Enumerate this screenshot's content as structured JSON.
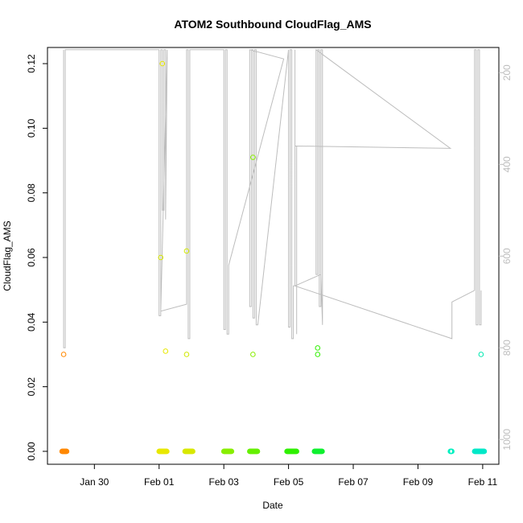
{
  "chart_data": {
    "type": "scatter",
    "title": "ATOM2 Southbound CloudFlag_AMS",
    "xlabel": "Date",
    "ylabel": "CloudFlag_AMS",
    "x_ticks": [
      "Jan 30",
      "Feb 01",
      "Feb 03",
      "Feb 05",
      "Feb 07",
      "Feb 09",
      "Feb 11"
    ],
    "x_tick_days": [
      30,
      32,
      34,
      36,
      38,
      40,
      42
    ],
    "xlim_days": [
      28.55,
      42.5
    ],
    "ylim": [
      -0.004,
      0.125
    ],
    "y_ticks": [
      "0.00",
      "0.02",
      "0.04",
      "0.06",
      "0.08",
      "0.10",
      "0.12"
    ],
    "y_tick_values": [
      0,
      0.02,
      0.04,
      0.06,
      0.08,
      0.1,
      0.12
    ],
    "right_axis": {
      "ylim": [
        1054,
        145
      ],
      "ticks": [
        "200",
        "400",
        "600",
        "800",
        "1000"
      ],
      "tick_values": [
        200,
        400,
        600,
        800,
        1000
      ],
      "color": "#bdbdbd"
    },
    "grid": false,
    "points": [
      {
        "day": 29.05,
        "value": 0.03,
        "color": "#ff8800"
      },
      {
        "day": 32.1,
        "value": 0.12,
        "color": "#e8e800"
      },
      {
        "day": 32.05,
        "value": 0.06,
        "color": "#d8e800"
      },
      {
        "day": 32.2,
        "value": 0.031,
        "color": "#e8e800"
      },
      {
        "day": 32.85,
        "value": 0.062,
        "color": "#d0e800"
      },
      {
        "day": 32.85,
        "value": 0.03,
        "color": "#d0e800"
      },
      {
        "day": 34.9,
        "value": 0.091,
        "color": "#88ee00"
      },
      {
        "day": 34.9,
        "value": 0.03,
        "color": "#88ee00"
      },
      {
        "day": 36.9,
        "value": 0.032,
        "color": "#30f000"
      },
      {
        "day": 36.9,
        "value": 0.03,
        "color": "#30f000"
      },
      {
        "day": 41.95,
        "value": 0.03,
        "color": "#00e8b0"
      }
    ],
    "zero_clusters": [
      {
        "start": 29.0,
        "end": 29.15,
        "color": "#ff8800"
      },
      {
        "start": 32.0,
        "end": 32.25,
        "color": "#e8e800"
      },
      {
        "start": 32.8,
        "end": 33.05,
        "color": "#d8e800"
      },
      {
        "start": 34.0,
        "end": 34.25,
        "color": "#88ee00"
      },
      {
        "start": 34.8,
        "end": 35.05,
        "color": "#66f000"
      },
      {
        "start": 35.95,
        "end": 36.25,
        "color": "#30f000"
      },
      {
        "start": 36.8,
        "end": 37.05,
        "color": "#10f030"
      },
      {
        "start": 41.0,
        "end": 41.05,
        "color": "#00f0c0"
      },
      {
        "start": 41.75,
        "end": 42.05,
        "color": "#00e8c8"
      }
    ],
    "altitude_trace": {
      "color": "#bdbdbd",
      "points": [
        [
          29.05,
          150
        ],
        [
          29.05,
          800
        ],
        [
          29.1,
          800
        ],
        [
          29.1,
          150
        ],
        [
          32.0,
          150
        ],
        [
          32.0,
          730
        ],
        [
          32.05,
          730
        ],
        [
          32.05,
          150
        ],
        [
          32.1,
          150
        ],
        [
          32.1,
          500
        ],
        [
          32.15,
          500
        ],
        [
          32.15,
          150
        ],
        [
          32.2,
          150
        ],
        [
          32.2,
          520
        ],
        [
          32.25,
          150
        ],
        [
          32.05,
          720
        ],
        [
          32.85,
          705
        ],
        [
          32.85,
          150
        ],
        [
          32.9,
          150
        ],
        [
          32.9,
          780
        ],
        [
          32.95,
          780
        ],
        [
          32.95,
          150
        ],
        [
          34.0,
          150
        ],
        [
          34.0,
          760
        ],
        [
          34.05,
          760
        ],
        [
          34.05,
          150
        ],
        [
          34.1,
          150
        ],
        [
          34.1,
          770
        ],
        [
          34.15,
          770
        ],
        [
          34.15,
          620
        ],
        [
          35.85,
          170
        ],
        [
          34.8,
          150
        ],
        [
          34.8,
          710
        ],
        [
          34.85,
          710
        ],
        [
          34.85,
          150
        ],
        [
          34.9,
          150
        ],
        [
          34.9,
          735
        ],
        [
          34.95,
          735
        ],
        [
          34.95,
          150
        ],
        [
          35.0,
          150
        ],
        [
          35.0,
          750
        ],
        [
          35.05,
          750
        ],
        [
          36.0,
          150
        ],
        [
          36.0,
          755
        ],
        [
          36.05,
          755
        ],
        [
          36.05,
          150
        ],
        [
          36.1,
          150
        ],
        [
          36.1,
          780
        ],
        [
          36.15,
          780
        ],
        [
          36.15,
          665
        ],
        [
          36.2,
          665
        ],
        [
          36.2,
          150
        ],
        [
          36.2,
          360
        ],
        [
          36.25,
          360
        ],
        [
          36.25,
          770
        ],
        [
          36.25,
          360
        ],
        [
          41.0,
          365
        ],
        [
          36.85,
          150
        ],
        [
          36.85,
          640
        ],
        [
          36.9,
          640
        ],
        [
          36.9,
          150
        ],
        [
          36.95,
          150
        ],
        [
          36.95,
          710
        ],
        [
          37.0,
          710
        ],
        [
          37.0,
          150
        ],
        [
          37.05,
          150
        ],
        [
          37.05,
          750
        ],
        [
          37.0,
          640
        ],
        [
          36.2,
          665
        ],
        [
          41.05,
          780
        ],
        [
          41.05,
          700
        ],
        [
          41.75,
          675
        ],
        [
          41.75,
          150
        ],
        [
          41.8,
          150
        ],
        [
          41.8,
          750
        ],
        [
          41.85,
          750
        ],
        [
          41.85,
          150
        ],
        [
          41.9,
          150
        ],
        [
          41.9,
          750
        ],
        [
          41.95,
          750
        ],
        [
          41.95,
          675
        ]
      ]
    }
  }
}
